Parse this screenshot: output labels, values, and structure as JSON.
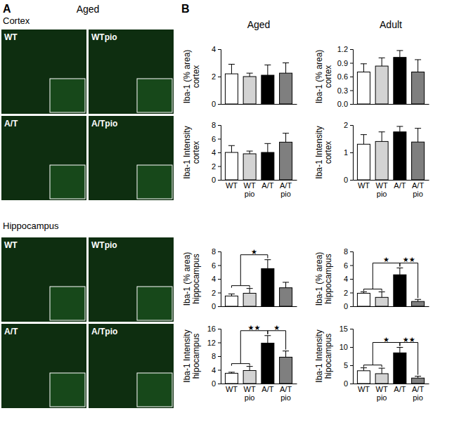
{
  "figure": {
    "panel_a_label": "A",
    "panel_a_title": "Aged",
    "panel_b_label": "B",
    "column_titles": [
      "Aged",
      "Adult"
    ]
  },
  "panel_a": {
    "sections": [
      {
        "title": "Cortex",
        "images": [
          "WT",
          "WTpio",
          "A/T",
          "A/Tpio"
        ]
      },
      {
        "title": "Hippocampus",
        "images": [
          "WT",
          "WTpio",
          "A/T",
          "A/Tpio"
        ]
      }
    ]
  },
  "chart_data": [
    {
      "type": "bar",
      "y_label": [
        "Iba-1 (% area)",
        "cortex"
      ],
      "categories": [
        null,
        null,
        null,
        null
      ],
      "values": [
        2.2,
        2.0,
        2.1,
        2.25
      ],
      "errors": [
        0.7,
        0.25,
        0.75,
        0.75
      ],
      "colors": [
        "#ffffff",
        "#d3d3d3",
        "#000000",
        "#7f7f7f"
      ],
      "ylim": [
        0,
        4
      ],
      "yticks": [
        0,
        2,
        4
      ],
      "grid": false,
      "annotations": []
    },
    {
      "type": "bar",
      "y_label": [
        "Iba-1 (% area)",
        "cortex"
      ],
      "categories": [
        null,
        null,
        null,
        null
      ],
      "values": [
        0.7,
        0.83,
        1.02,
        0.7
      ],
      "errors": [
        0.18,
        0.18,
        0.15,
        0.27
      ],
      "colors": [
        "#ffffff",
        "#d3d3d3",
        "#000000",
        "#7f7f7f"
      ],
      "ylim": [
        0,
        1.2
      ],
      "yticks": [
        {
          "value": 0,
          "label": "0.0"
        },
        0.3,
        0.6,
        0.9,
        1.2
      ],
      "grid": false,
      "annotations": []
    },
    {
      "type": "bar",
      "y_label": [
        "Iba-1 Intensity",
        "cortex"
      ],
      "categories": [
        "WT",
        "WT pio",
        "A/T",
        "A/T pio"
      ],
      "values": [
        4.0,
        3.8,
        4.0,
        5.5
      ],
      "errors": [
        1.0,
        0.4,
        1.3,
        1.3
      ],
      "colors": [
        "#ffffff",
        "#d3d3d3",
        "#000000",
        "#7f7f7f"
      ],
      "ylim": [
        0,
        8
      ],
      "yticks": [
        0,
        2,
        4,
        6,
        8
      ],
      "grid": false,
      "annotations": []
    },
    {
      "type": "bar",
      "y_label": [
        "Iba-1 Intensity",
        "cortex"
      ],
      "categories": [
        "WT",
        "WT pio",
        "A/T",
        "A/T pio"
      ],
      "values": [
        1.3,
        1.4,
        1.75,
        1.38
      ],
      "errors": [
        0.35,
        0.35,
        0.2,
        0.5
      ],
      "colors": [
        "#ffffff",
        "#d3d3d3",
        "#000000",
        "#7f7f7f"
      ],
      "ylim": [
        0,
        2
      ],
      "yticks": [
        0,
        1,
        2
      ],
      "grid": false,
      "annotations": []
    },
    {
      "type": "bar",
      "y_label": [
        "Iba-1 (% area)",
        "hippocampus"
      ],
      "categories": [
        null,
        null,
        null,
        null
      ],
      "values": [
        1.5,
        1.9,
        5.5,
        2.7
      ],
      "errors": [
        0.3,
        0.7,
        1.3,
        0.8
      ],
      "colors": [
        "#ffffff",
        "#d3d3d3",
        "#000000",
        "#7f7f7f"
      ],
      "ylim": [
        0,
        8
      ],
      "yticks": [
        0,
        2,
        4,
        6,
        8
      ],
      "grid": false,
      "annotations": [
        {
          "text": "★",
          "between": [
            [
              0,
              1
            ],
            2
          ]
        }
      ]
    },
    {
      "type": "bar",
      "y_label": [
        "Iba-1 (% area)",
        "hippocampus"
      ],
      "categories": [
        null,
        null,
        null,
        null
      ],
      "values": [
        1.9,
        1.3,
        4.6,
        0.7
      ],
      "errors": [
        0.2,
        0.8,
        1.0,
        0.3
      ],
      "colors": [
        "#ffffff",
        "#d3d3d3",
        "#000000",
        "#7f7f7f"
      ],
      "ylim": [
        0,
        8
      ],
      "yticks": [
        0,
        2,
        4,
        6,
        8
      ],
      "grid": false,
      "annotations": [
        {
          "text": "★",
          "between": [
            [
              0,
              1
            ],
            2
          ]
        },
        {
          "text": "★★",
          "between": [
            [
              3
            ],
            2
          ]
        }
      ]
    },
    {
      "type": "bar",
      "y_label": [
        "Iba-1 Intensity",
        "hipocampus"
      ],
      "categories": [
        "WT",
        "WT pio",
        "A/T",
        "A/T pio"
      ],
      "values": [
        3.0,
        3.8,
        11.8,
        7.7
      ],
      "errors": [
        0.3,
        1.2,
        2.2,
        1.8
      ],
      "colors": [
        "#ffffff",
        "#d3d3d3",
        "#000000",
        "#7f7f7f"
      ],
      "ylim": [
        0,
        16
      ],
      "yticks": [
        0,
        4,
        8,
        12,
        16
      ],
      "grid": false,
      "annotations": [
        {
          "text": "★★",
          "between": [
            [
              0,
              1
            ],
            2
          ]
        },
        {
          "text": "★",
          "between": [
            [
              3
            ],
            2
          ]
        }
      ]
    },
    {
      "type": "bar",
      "y_label": [
        "Iba-1 Intensity",
        "hipocampus"
      ],
      "categories": [
        "WT",
        "WT pio",
        "A/T",
        "A/T pio"
      ],
      "values": [
        3.5,
        2.7,
        8.4,
        1.5
      ],
      "errors": [
        0.8,
        1.5,
        1.5,
        0.5
      ],
      "colors": [
        "#ffffff",
        "#d3d3d3",
        "#000000",
        "#7f7f7f"
      ],
      "ylim": [
        0,
        15
      ],
      "yticks": [
        0,
        5,
        10,
        15
      ],
      "grid": false,
      "annotations": [
        {
          "text": "★",
          "between": [
            [
              0,
              1
            ],
            2
          ]
        },
        {
          "text": "★★",
          "between": [
            [
              3
            ],
            2
          ]
        }
      ]
    }
  ]
}
